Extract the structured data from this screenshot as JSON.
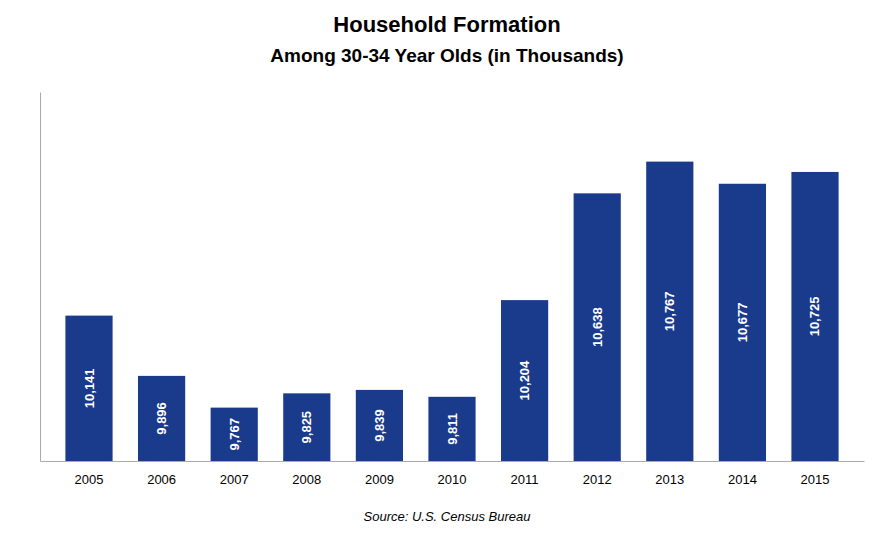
{
  "chart_data": {
    "type": "bar",
    "title": "Household Formation",
    "subtitle": "Among 30-34 Year Olds (in Thousands)",
    "categories": [
      "2005",
      "2006",
      "2007",
      "2008",
      "2009",
      "2010",
      "2011",
      "2012",
      "2013",
      "2014",
      "2015"
    ],
    "values": [
      10141,
      9896,
      9767,
      9825,
      9839,
      9811,
      10204,
      10638,
      10767,
      10677,
      10725
    ],
    "value_labels": [
      "10,141",
      "9,896",
      "9,767",
      "9,825",
      "9,839",
      "9,811",
      "10,204",
      "10,638",
      "10,767",
      "10,677",
      "10,725"
    ],
    "data_labels": true,
    "color": "#1a3a8c",
    "ylim": [
      9550,
      11050
    ],
    "grid": false,
    "tick_labels": "x",
    "source": "Source: U.S. Census Bureau"
  }
}
